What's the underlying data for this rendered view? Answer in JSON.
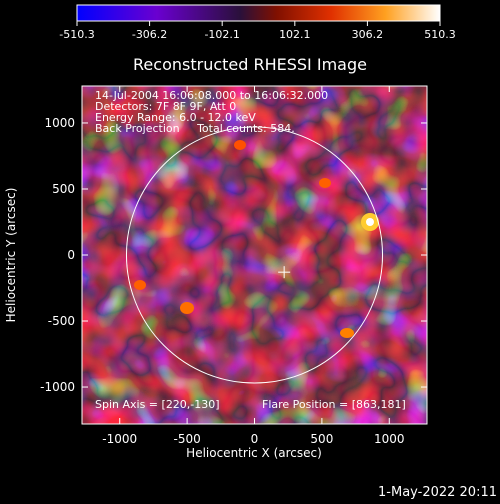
{
  "colorbar": {
    "tick_labels": [
      "-510.3",
      "-306.2",
      "-102.1",
      "102.1",
      "306.2",
      "510.3"
    ],
    "range": [
      -510.3,
      510.3
    ]
  },
  "plot": {
    "title": "Reconstructed RHESSI Image",
    "xlabel": "Heliocentric X (arcsec)",
    "ylabel": "Heliocentric Y (arcsec)",
    "x_ticks": [
      "-1000",
      "-500",
      "0",
      "500",
      "1000"
    ],
    "y_ticks": [
      "1000",
      "500",
      "0",
      "-500",
      "-1000"
    ],
    "xlim": [
      -1280,
      1280
    ],
    "ylim": [
      -1280,
      1280
    ],
    "info_lines": [
      "14-Jul-2004 16:06:08.000 to 16:06:32.000",
      "Detectors: 7F 8F 9F, Att 0",
      "Energy Range: 6.0 - 12.0 keV",
      "Back Projection     Total counts: 584."
    ],
    "spin_axis": "Spin Axis = [220,-130]",
    "flare_position": "Flare Position = [863,181]",
    "solar_disk_radius_arcsec": 950,
    "spin_axis_xy": [
      220,
      -130
    ]
  },
  "footer": {
    "timestamp": "1-May-2022 20:11"
  },
  "colors": {
    "colormap": [
      "#0000ff",
      "#7000b0",
      "#1a0a2e",
      "#d01000",
      "#ff6000",
      "#ffc020",
      "#ffffff"
    ],
    "disk_circle": "#ffffff"
  }
}
